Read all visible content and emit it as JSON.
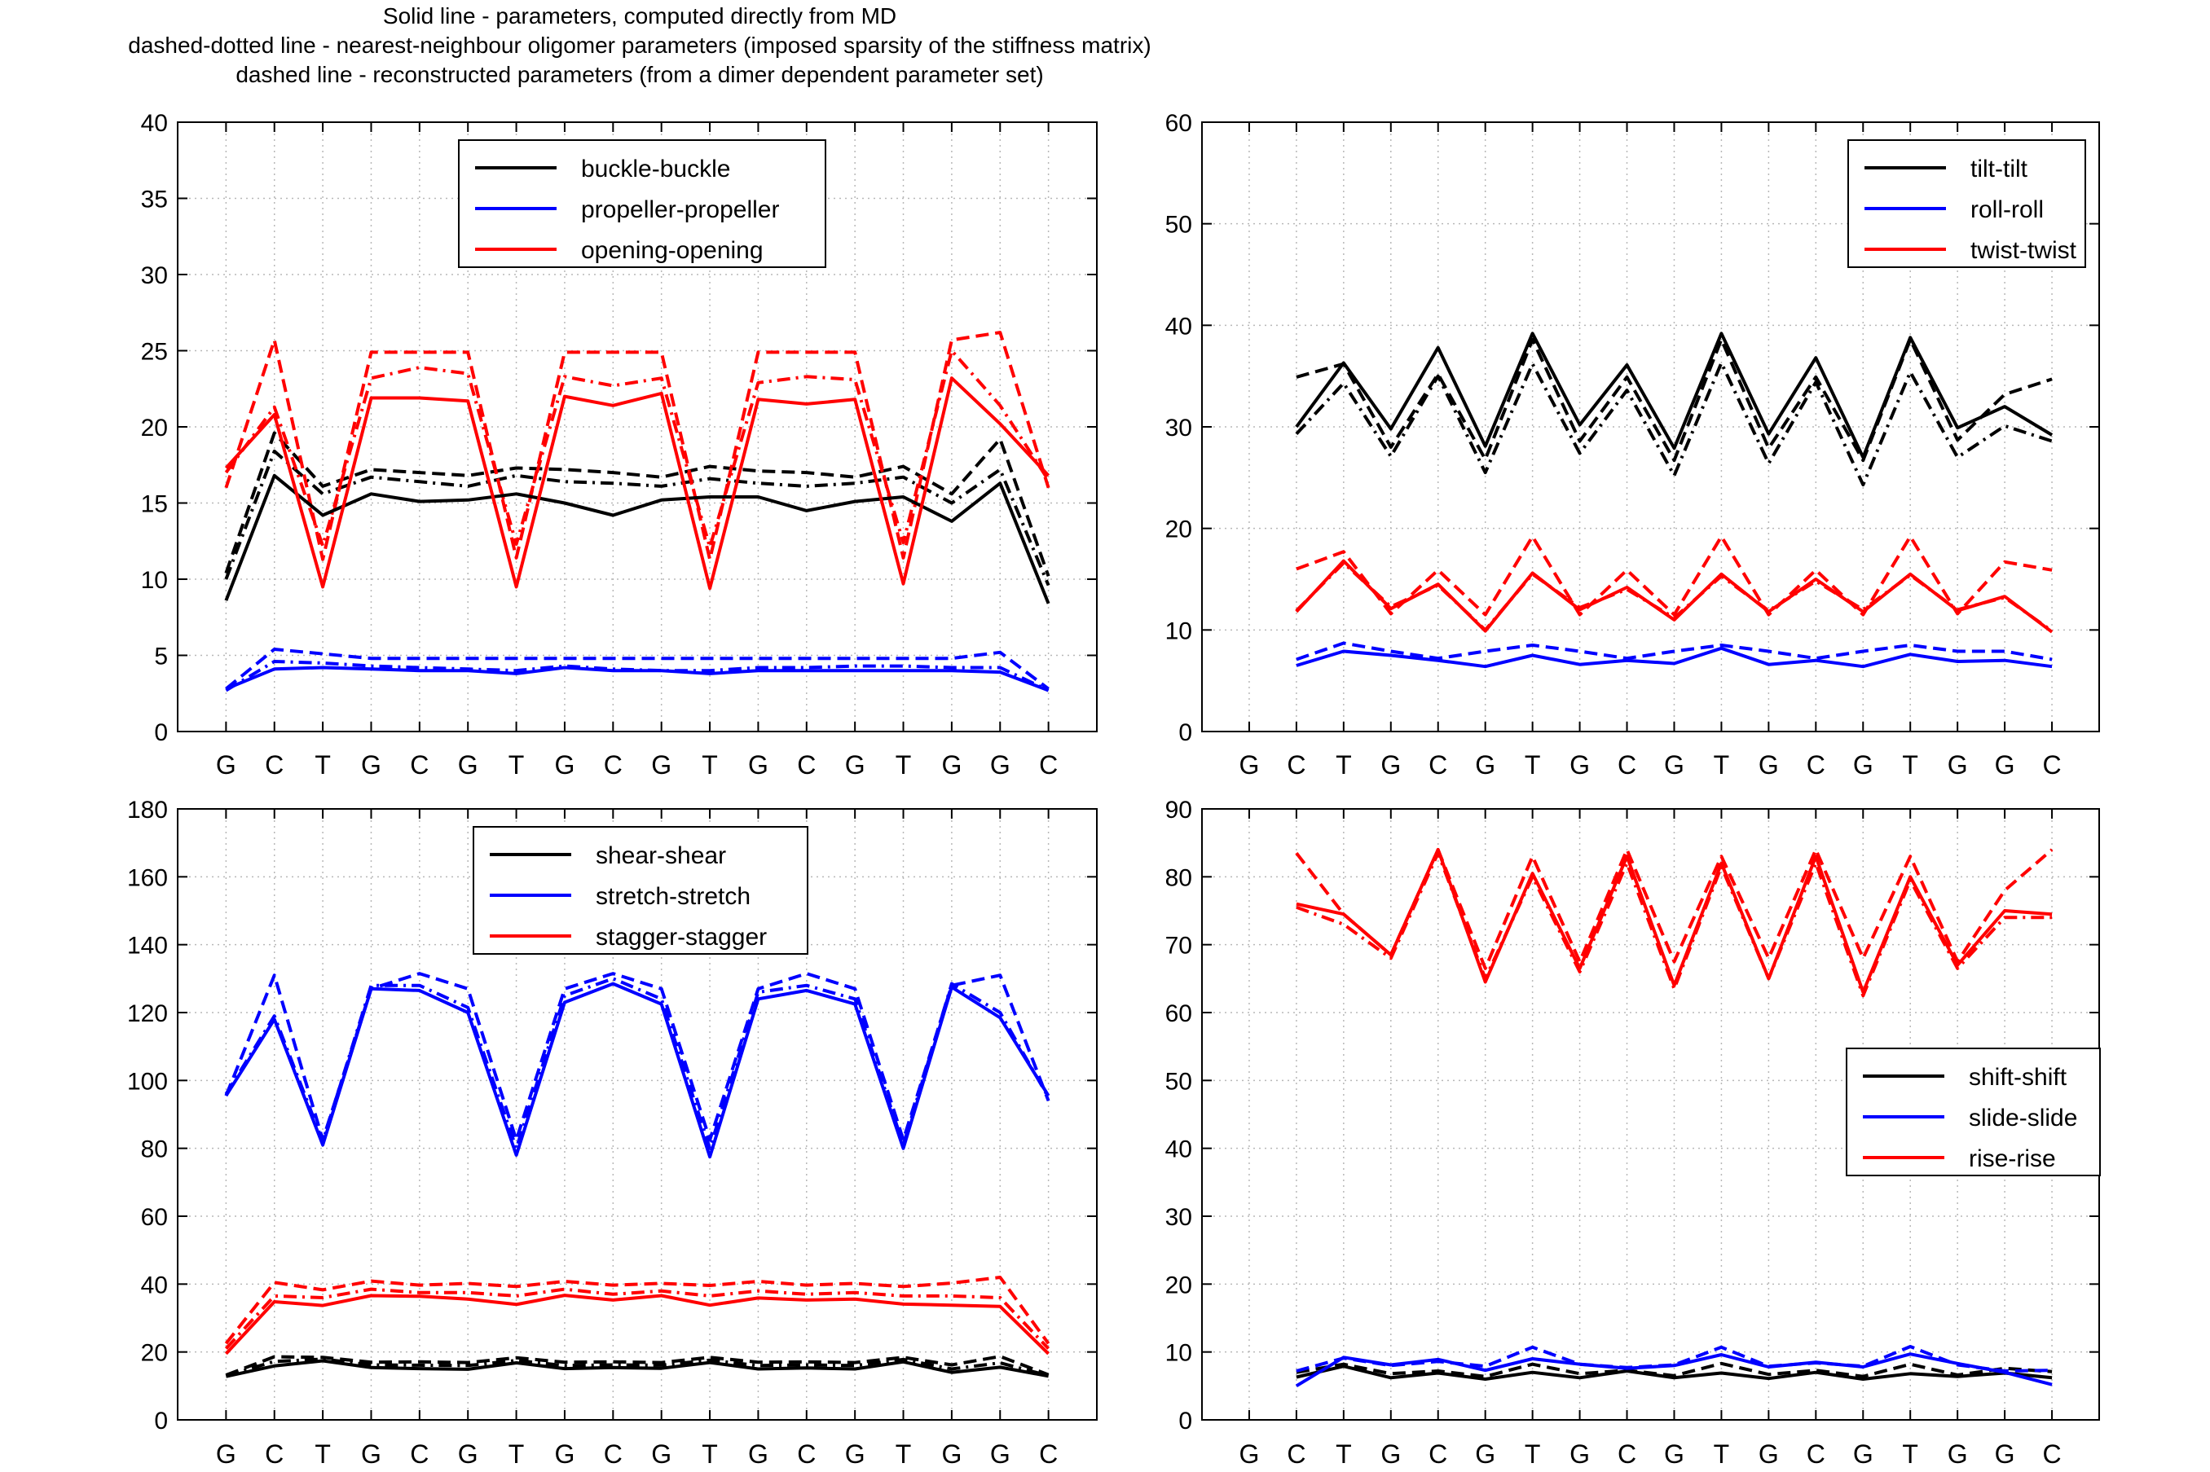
{
  "header": {
    "line1": "Solid line - parameters, computed directly from MD",
    "line2": "dashed-dotted line - nearest-neighbour oligomer parameters (imposed sparsity of the stiffness matrix)",
    "line3": "dashed line - reconstructed parameters (from a dimer dependent parameter set)"
  },
  "chart_data": [
    {
      "type": "line",
      "categories": [
        "G",
        "C",
        "T",
        "G",
        "C",
        "G",
        "T",
        "G",
        "C",
        "G",
        "T",
        "G",
        "C",
        "G",
        "T",
        "G",
        "G",
        "C"
      ],
      "ylim": [
        0,
        40
      ],
      "yticks": [
        0,
        5,
        10,
        15,
        20,
        25,
        30,
        35,
        40
      ],
      "grid": true,
      "legend_position": "top-center",
      "series": [
        {
          "name": "buckle-buckle",
          "color": "#000000",
          "style": "solid",
          "legend": true,
          "values": [
            8.6,
            16.8,
            14.2,
            15.6,
            15.1,
            15.2,
            15.6,
            15.0,
            14.2,
            15.2,
            15.4,
            15.4,
            14.5,
            15.1,
            15.4,
            13.8,
            16.3,
            8.4
          ]
        },
        {
          "name": "",
          "color": "#000000",
          "style": "dashed",
          "values": [
            10.4,
            19.6,
            16.1,
            17.2,
            17.0,
            16.8,
            17.3,
            17.2,
            17.0,
            16.7,
            17.4,
            17.1,
            17.0,
            16.7,
            17.4,
            15.6,
            19.2,
            10.2
          ]
        },
        {
          "name": "",
          "color": "#000000",
          "style": "dashdot",
          "values": [
            10.0,
            18.4,
            15.6,
            16.7,
            16.4,
            16.1,
            16.8,
            16.4,
            16.3,
            16.1,
            16.6,
            16.3,
            16.1,
            16.3,
            16.7,
            15.0,
            17.2,
            9.6
          ]
        },
        {
          "name": "propeller-propeller",
          "color": "#0000ff",
          "style": "solid",
          "legend": true,
          "values": [
            2.8,
            4.1,
            4.2,
            4.1,
            4.0,
            4.0,
            3.8,
            4.2,
            4.0,
            4.0,
            3.8,
            4.0,
            4.0,
            4.0,
            4.0,
            4.0,
            3.9,
            2.7
          ]
        },
        {
          "name": "",
          "color": "#0000ff",
          "style": "dashed",
          "values": [
            2.8,
            5.4,
            5.1,
            4.8,
            4.8,
            4.8,
            4.8,
            4.8,
            4.8,
            4.8,
            4.8,
            4.8,
            4.8,
            4.8,
            4.8,
            4.8,
            5.2,
            2.8
          ]
        },
        {
          "name": "",
          "color": "#0000ff",
          "style": "dashdot",
          "values": [
            2.7,
            4.6,
            4.5,
            4.3,
            4.2,
            4.1,
            4.0,
            4.3,
            4.1,
            4.0,
            4.0,
            4.2,
            4.2,
            4.3,
            4.3,
            4.2,
            4.2,
            2.7
          ]
        },
        {
          "name": "opening-opening",
          "color": "#ff0000",
          "style": "solid",
          "legend": true,
          "values": [
            17.3,
            20.8,
            9.5,
            21.9,
            21.9,
            21.7,
            9.5,
            22.0,
            21.4,
            22.2,
            9.4,
            21.8,
            21.5,
            21.8,
            9.7,
            23.2,
            20.2,
            16.8
          ]
        },
        {
          "name": "",
          "color": "#ff0000",
          "style": "dashed",
          "values": [
            16.0,
            25.7,
            11.3,
            24.9,
            24.9,
            24.9,
            11.4,
            24.9,
            24.9,
            24.9,
            11.3,
            24.9,
            24.9,
            24.9,
            11.4,
            25.7,
            26.2,
            16.0
          ]
        },
        {
          "name": "",
          "color": "#ff0000",
          "style": "dashdot",
          "values": [
            17.0,
            21.3,
            12.2,
            23.2,
            23.9,
            23.5,
            12.3,
            23.3,
            22.7,
            23.2,
            12.1,
            22.9,
            23.3,
            23.1,
            12.4,
            25.0,
            21.4,
            16.5
          ]
        }
      ]
    },
    {
      "type": "line",
      "categories": [
        "G",
        "C",
        "T",
        "G",
        "C",
        "G",
        "T",
        "G",
        "C",
        "G",
        "T",
        "G",
        "C",
        "G",
        "T",
        "G",
        "G",
        "C"
      ],
      "ylim": [
        0,
        60
      ],
      "yticks": [
        0,
        10,
        20,
        30,
        40,
        50,
        60
      ],
      "grid": true,
      "legend_position": "top-right",
      "series": [
        {
          "name": "tilt-tilt",
          "color": "#000000",
          "style": "solid",
          "legend": true,
          "values": [
            null,
            30.0,
            36.3,
            29.8,
            37.8,
            28.1,
            39.2,
            30.2,
            36.1,
            27.9,
            39.2,
            29.3,
            36.8,
            27.0,
            38.8,
            29.9,
            32.0,
            29.2
          ]
        },
        {
          "name": "",
          "color": "#000000",
          "style": "dashed",
          "values": [
            null,
            34.9,
            36.2,
            28.0,
            35.2,
            26.8,
            38.6,
            28.6,
            34.9,
            26.7,
            38.6,
            27.9,
            34.9,
            26.7,
            38.6,
            28.7,
            33.2,
            34.7
          ]
        },
        {
          "name": "",
          "color": "#000000",
          "style": "dashdot",
          "values": [
            null,
            29.3,
            34.3,
            27.1,
            35.0,
            25.5,
            36.2,
            27.4,
            33.6,
            25.2,
            36.3,
            26.4,
            34.4,
            24.3,
            35.4,
            27.0,
            30.1,
            28.6
          ]
        },
        {
          "name": "roll-roll",
          "color": "#0000ff",
          "style": "solid",
          "legend": true,
          "values": [
            null,
            6.5,
            7.9,
            7.5,
            7.0,
            6.4,
            7.5,
            6.6,
            7.0,
            6.7,
            8.2,
            6.6,
            7.0,
            6.4,
            7.6,
            6.9,
            7.0,
            6.4
          ]
        },
        {
          "name": "",
          "color": "#0000ff",
          "style": "dashed",
          "values": [
            null,
            7.1,
            8.7,
            7.9,
            7.2,
            7.9,
            8.5,
            7.9,
            7.2,
            7.9,
            8.5,
            7.9,
            7.2,
            7.9,
            8.5,
            7.9,
            7.9,
            7.1
          ]
        },
        {
          "name": "twist-twist",
          "color": "#ff0000",
          "style": "solid",
          "legend": true,
          "values": [
            null,
            11.8,
            16.8,
            12.1,
            14.5,
            9.9,
            15.6,
            12.0,
            14.2,
            11.0,
            15.5,
            11.8,
            15.0,
            11.8,
            15.5,
            11.9,
            13.3,
            9.8
          ]
        },
        {
          "name": "",
          "color": "#ff0000",
          "style": "dashed",
          "values": [
            null,
            16.0,
            17.7,
            11.6,
            15.9,
            11.5,
            19.2,
            11.5,
            15.9,
            11.5,
            19.2,
            11.5,
            15.9,
            11.5,
            19.2,
            11.6,
            16.7,
            15.9
          ]
        },
        {
          "name": "",
          "color": "#ff0000",
          "style": "dashdot",
          "values": [
            null,
            11.9,
            16.6,
            12.3,
            14.4,
            10.0,
            15.5,
            12.2,
            14.0,
            11.2,
            15.3,
            11.9,
            14.8,
            12.0,
            15.4,
            12.0,
            13.2,
            9.9
          ]
        }
      ]
    },
    {
      "type": "line",
      "categories": [
        "G",
        "C",
        "T",
        "G",
        "C",
        "G",
        "T",
        "G",
        "C",
        "G",
        "T",
        "G",
        "C",
        "G",
        "T",
        "G",
        "G",
        "C"
      ],
      "ylim": [
        0,
        180
      ],
      "yticks": [
        0,
        20,
        40,
        60,
        80,
        100,
        120,
        140,
        160,
        180
      ],
      "grid": true,
      "legend_position": "top-center",
      "series": [
        {
          "name": "shear-shear",
          "color": "#000000",
          "style": "solid",
          "legend": true,
          "values": [
            12.8,
            15.9,
            17.4,
            15.4,
            15.1,
            14.9,
            16.8,
            15.1,
            15.4,
            15.2,
            16.9,
            15.0,
            15.3,
            15.0,
            17.1,
            14.0,
            15.5,
            12.9
          ]
        },
        {
          "name": "",
          "color": "#000000",
          "style": "dashed",
          "values": [
            13.2,
            18.6,
            18.4,
            17.0,
            17.1,
            16.9,
            18.3,
            17.0,
            17.1,
            16.9,
            18.4,
            17.0,
            17.1,
            16.9,
            18.4,
            16.2,
            18.7,
            13.3
          ]
        },
        {
          "name": "",
          "color": "#000000",
          "style": "dashdot",
          "values": [
            13.0,
            17.2,
            17.9,
            16.2,
            16.1,
            16.0,
            17.5,
            16.0,
            16.2,
            16.1,
            17.6,
            16.0,
            16.2,
            16.0,
            17.8,
            15.0,
            16.8,
            13.0
          ]
        },
        {
          "name": "stretch-stretch",
          "color": "#0000ff",
          "style": "solid",
          "legend": true,
          "values": [
            95.5,
            118.0,
            81.0,
            127.0,
            126.5,
            120.0,
            78.0,
            123.0,
            128.5,
            122.5,
            77.5,
            124.0,
            126.5,
            122.5,
            80.0,
            127.5,
            118.5,
            95.5
          ]
        },
        {
          "name": "",
          "color": "#0000ff",
          "style": "dashed",
          "values": [
            95.5,
            131.0,
            82.5,
            127.0,
            131.5,
            127.0,
            82.5,
            127.0,
            131.5,
            127.0,
            82.5,
            127.0,
            131.5,
            127.0,
            82.5,
            128.0,
            131.0,
            94.0
          ]
        },
        {
          "name": "",
          "color": "#0000ff",
          "style": "dashdot",
          "values": [
            96.0,
            119.0,
            82.0,
            128.0,
            128.0,
            121.5,
            80.0,
            125.0,
            130.0,
            124.0,
            80.0,
            126.0,
            128.0,
            124.0,
            81.0,
            128.5,
            120.0,
            95.0
          ]
        },
        {
          "name": "stagger-stagger",
          "color": "#ff0000",
          "style": "solid",
          "legend": true,
          "values": [
            19.5,
            34.8,
            33.7,
            36.6,
            36.4,
            35.6,
            34.0,
            36.7,
            35.3,
            36.6,
            33.8,
            35.9,
            35.3,
            35.6,
            34.1,
            33.8,
            33.4,
            19.5
          ]
        },
        {
          "name": "",
          "color": "#ff0000",
          "style": "dashed",
          "values": [
            22.5,
            40.5,
            38.3,
            40.9,
            39.7,
            40.2,
            39.3,
            40.8,
            39.7,
            40.2,
            39.6,
            40.8,
            39.7,
            40.2,
            39.3,
            40.3,
            42.0,
            22.5
          ]
        },
        {
          "name": "",
          "color": "#ff0000",
          "style": "dashdot",
          "values": [
            21.0,
            36.5,
            36.0,
            38.5,
            37.5,
            37.5,
            36.5,
            38.5,
            37.0,
            38.0,
            36.5,
            38.0,
            37.0,
            37.5,
            36.5,
            36.5,
            36.0,
            21.0
          ]
        }
      ]
    },
    {
      "type": "line",
      "categories": [
        "G",
        "C",
        "T",
        "G",
        "C",
        "G",
        "T",
        "G",
        "C",
        "G",
        "T",
        "G",
        "C",
        "G",
        "T",
        "G",
        "G",
        "C"
      ],
      "ylim": [
        0,
        90
      ],
      "yticks": [
        0,
        10,
        20,
        30,
        40,
        50,
        60,
        70,
        80,
        90
      ],
      "grid": true,
      "legend_position": "right",
      "series": [
        {
          "name": "shift-shift",
          "color": "#000000",
          "style": "solid",
          "legend": true,
          "values": [
            null,
            6.3,
            7.9,
            6.2,
            6.9,
            6.0,
            7.0,
            6.2,
            7.2,
            6.2,
            6.9,
            6.1,
            7.0,
            6.0,
            6.8,
            6.4,
            6.9,
            6.2
          ]
        },
        {
          "name": "",
          "color": "#000000",
          "style": "dashed",
          "values": [
            null,
            7.0,
            8.2,
            6.8,
            7.2,
            6.4,
            8.2,
            6.8,
            7.3,
            6.5,
            8.3,
            6.7,
            7.3,
            6.4,
            8.2,
            6.6,
            7.6,
            7.1
          ]
        },
        {
          "name": "slide-slide",
          "color": "#0000ff",
          "style": "solid",
          "legend": true,
          "values": [
            null,
            5.0,
            9.2,
            8.1,
            8.9,
            7.3,
            9.0,
            8.2,
            7.6,
            8.0,
            9.6,
            7.8,
            8.5,
            7.8,
            9.7,
            8.3,
            7.0,
            5.2
          ]
        },
        {
          "name": "",
          "color": "#0000ff",
          "style": "dashed",
          "values": [
            null,
            7.2,
            9.1,
            8.0,
            8.6,
            7.9,
            10.7,
            8.2,
            7.7,
            8.1,
            10.7,
            7.9,
            8.4,
            7.9,
            10.8,
            8.1,
            7.2,
            7.3
          ]
        },
        {
          "name": "rise-rise",
          "color": "#ff0000",
          "style": "solid",
          "legend": true,
          "values": [
            null,
            76.0,
            74.5,
            68.5,
            84.0,
            64.5,
            80.5,
            66.5,
            83.0,
            64.0,
            82.0,
            65.0,
            83.0,
            63.0,
            80.0,
            67.0,
            75.0,
            74.5
          ]
        },
        {
          "name": "",
          "color": "#ff0000",
          "style": "dashed",
          "values": [
            null,
            83.5,
            74.5,
            68.5,
            84.0,
            66.5,
            83.0,
            67.5,
            84.0,
            67.5,
            83.0,
            68.0,
            84.0,
            68.0,
            83.0,
            67.5,
            78.0,
            84.0
          ]
        },
        {
          "name": "",
          "color": "#ff0000",
          "style": "dashdot",
          "values": [
            null,
            75.5,
            73.0,
            68.0,
            83.5,
            65.0,
            80.0,
            66.0,
            82.0,
            63.5,
            81.5,
            65.0,
            82.0,
            62.5,
            79.5,
            66.5,
            74.0,
            74.0
          ]
        }
      ]
    }
  ]
}
